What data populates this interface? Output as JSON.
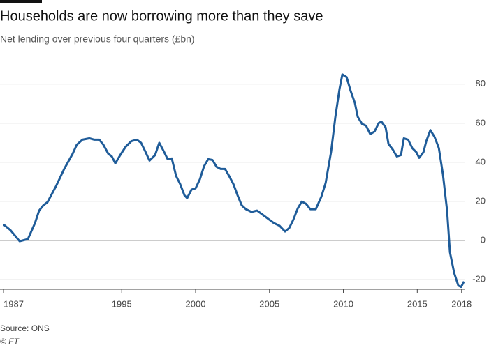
{
  "chart_data": {
    "type": "line",
    "title": "Households are now borrowing more than they save",
    "subtitle": "Net lending over previous four quarters (£bn)",
    "source": "Source: ONS",
    "credit": "© FT",
    "x": [
      1987.0,
      1987.47,
      1988.09,
      1988.65,
      1989.13,
      1989.41,
      1989.7,
      1989.98,
      1990.55,
      1991.11,
      1991.68,
      1991.96,
      1992.34,
      1992.82,
      1993.15,
      1993.48,
      1993.76,
      1994.09,
      1994.33,
      1994.57,
      1994.9,
      1995.27,
      1995.65,
      1996.03,
      1996.31,
      1996.6,
      1996.88,
      1997.26,
      1997.54,
      1997.83,
      1998.11,
      1998.39,
      1998.68,
      1998.96,
      1999.25,
      1999.43,
      1999.72,
      2000.0,
      2000.29,
      2000.57,
      2000.85,
      2001.14,
      2001.42,
      2001.7,
      2001.99,
      2002.27,
      2002.56,
      2002.84,
      2003.12,
      2003.41,
      2003.78,
      2004.16,
      2004.54,
      2004.92,
      2005.3,
      2005.68,
      2006.05,
      2006.34,
      2006.62,
      2006.91,
      2007.19,
      2007.47,
      2007.76,
      2008.13,
      2008.51,
      2008.8,
      2009.17,
      2009.46,
      2009.74,
      2009.93,
      2010.22,
      2010.5,
      2010.78,
      2010.97,
      2011.26,
      2011.54,
      2011.82,
      2012.11,
      2012.39,
      2012.58,
      2012.86,
      2013.05,
      2013.34,
      2013.62,
      2013.9,
      2014.09,
      2014.38,
      2014.66,
      2014.94,
      2015.13,
      2015.42,
      2015.61,
      2015.89,
      2016.17,
      2016.46,
      2016.74,
      2017.02,
      2017.21,
      2017.5,
      2017.78,
      2017.97,
      2018.16
    ],
    "series": [
      {
        "name": "Net lending",
        "color": "#1f5c99",
        "values": [
          8.2,
          5.3,
          -0.4,
          0.7,
          8.9,
          15.3,
          18,
          19.6,
          27.7,
          36.6,
          44.4,
          49,
          51.6,
          52.3,
          51.6,
          51.6,
          49,
          44.4,
          43,
          39.5,
          43.7,
          48,
          50.8,
          51.6,
          50,
          45.5,
          40.9,
          43.7,
          50,
          45.9,
          41.6,
          42,
          33,
          28.8,
          23.1,
          21.7,
          26,
          26.7,
          31.3,
          38,
          41.6,
          41.2,
          37.7,
          36.6,
          36.6,
          33,
          28.8,
          23.1,
          18,
          16,
          14.6,
          15.3,
          13.2,
          11,
          8.9,
          7.5,
          4.6,
          6.4,
          10.7,
          16.4,
          19.9,
          18.8,
          16,
          16,
          22.4,
          29.5,
          45.5,
          63.3,
          77.5,
          85,
          83.6,
          76.4,
          70.4,
          63.3,
          59.7,
          58.7,
          54.4,
          55.8,
          60.1,
          60.8,
          57.9,
          49.4,
          46.6,
          43,
          43.7,
          52.3,
          51.6,
          47.3,
          45.2,
          42.3,
          45.2,
          50.8,
          56.5,
          53,
          47.3,
          33.8,
          15.3,
          -6,
          -16.7,
          -23.1,
          -23.8,
          -21
        ]
      }
    ],
    "xlim": [
      1987,
      2018.2
    ],
    "xticks": [
      1987,
      1995,
      2000,
      2005,
      2010,
      2015,
      2018
    ],
    "ylim": [
      -25,
      86
    ],
    "yticks": [
      -20,
      0,
      20,
      40,
      60,
      80
    ],
    "grid": true
  }
}
